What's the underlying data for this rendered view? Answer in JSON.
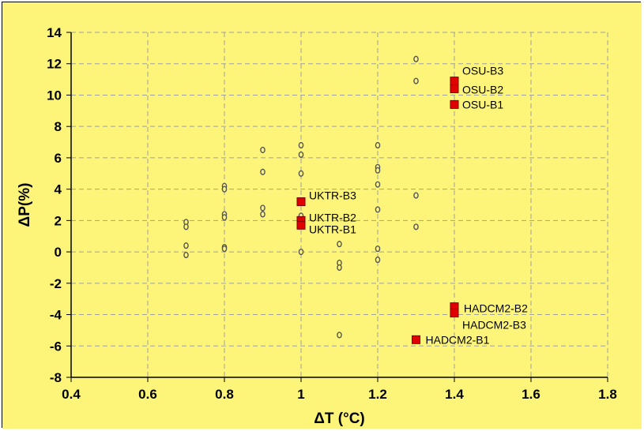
{
  "chart_data": {
    "type": "scatter",
    "xlabel": "ΔT (°C)",
    "ylabel": "ΔP(%)",
    "xlim": [
      0.4,
      1.8
    ],
    "ylim": [
      -8,
      14
    ],
    "x_ticks": [
      "0.4",
      "0.6",
      "0.8",
      "1",
      "1.2",
      "1.4",
      "1.6",
      "1.8"
    ],
    "y_ticks": [
      "-8",
      "-6",
      "-4",
      "-2",
      "0",
      "2",
      "4",
      "6",
      "8",
      "10",
      "12",
      "14"
    ],
    "grid": true,
    "colors": {
      "background": "#fdf57a",
      "plot_area": "#fdf57a",
      "grid": "#a0a0a0",
      "highlight_fill": "#e10000",
      "highlight_edge": "#7a0000",
      "point_edge": "#555555",
      "point_fill": "#fdf57a"
    },
    "series": [
      {
        "marker": "small-open-diamond",
        "points": [
          {
            "x": 0.7,
            "y": 1.9
          },
          {
            "x": 0.7,
            "y": 1.6
          },
          {
            "x": 0.7,
            "y": 0.4
          },
          {
            "x": 0.7,
            "y": -0.2
          },
          {
            "x": 0.8,
            "y": 4.2
          },
          {
            "x": 0.8,
            "y": 4.0
          },
          {
            "x": 0.8,
            "y": 2.4
          },
          {
            "x": 0.8,
            "y": 2.2
          },
          {
            "x": 0.8,
            "y": 0.3
          },
          {
            "x": 0.8,
            "y": 0.2
          },
          {
            "x": 0.9,
            "y": 6.5
          },
          {
            "x": 0.9,
            "y": 5.1
          },
          {
            "x": 0.9,
            "y": 2.8
          },
          {
            "x": 0.9,
            "y": 2.4
          },
          {
            "x": 1.0,
            "y": 6.8
          },
          {
            "x": 1.0,
            "y": 6.2
          },
          {
            "x": 1.0,
            "y": 5.0
          },
          {
            "x": 1.0,
            "y": 2.3
          },
          {
            "x": 1.0,
            "y": 0.0
          },
          {
            "x": 1.1,
            "y": 0.5
          },
          {
            "x": 1.1,
            "y": -0.7
          },
          {
            "x": 1.1,
            "y": -1.0
          },
          {
            "x": 1.1,
            "y": -5.3
          },
          {
            "x": 1.2,
            "y": 6.8
          },
          {
            "x": 1.2,
            "y": 5.4
          },
          {
            "x": 1.2,
            "y": 5.2
          },
          {
            "x": 1.2,
            "y": 4.3
          },
          {
            "x": 1.2,
            "y": 2.7
          },
          {
            "x": 1.2,
            "y": 0.2
          },
          {
            "x": 1.2,
            "y": -0.5
          },
          {
            "x": 1.3,
            "y": 12.3
          },
          {
            "x": 1.3,
            "y": 10.9
          },
          {
            "x": 1.3,
            "y": 3.6
          },
          {
            "x": 1.3,
            "y": 1.6
          }
        ]
      },
      {
        "marker": "red-square",
        "points": [
          {
            "x": 1.4,
            "y": 10.9,
            "label": "OSU-B3"
          },
          {
            "x": 1.4,
            "y": 10.4,
            "label": "OSU-B2"
          },
          {
            "x": 1.4,
            "y": 9.4,
            "label": "OSU-B1"
          },
          {
            "x": 1.0,
            "y": 3.2,
            "label": "UKTR-B3"
          },
          {
            "x": 1.0,
            "y": 2.0,
            "label": "UKTR-B2"
          },
          {
            "x": 1.0,
            "y": 1.7,
            "label": "UKTR-B1"
          },
          {
            "x": 1.4,
            "y": -3.5,
            "label": "HADCM2-B2"
          },
          {
            "x": 1.4,
            "y": -3.9,
            "label": "HADCM2-B3"
          },
          {
            "x": 1.3,
            "y": -5.6,
            "label": "HADCM2-B1"
          }
        ]
      }
    ]
  }
}
